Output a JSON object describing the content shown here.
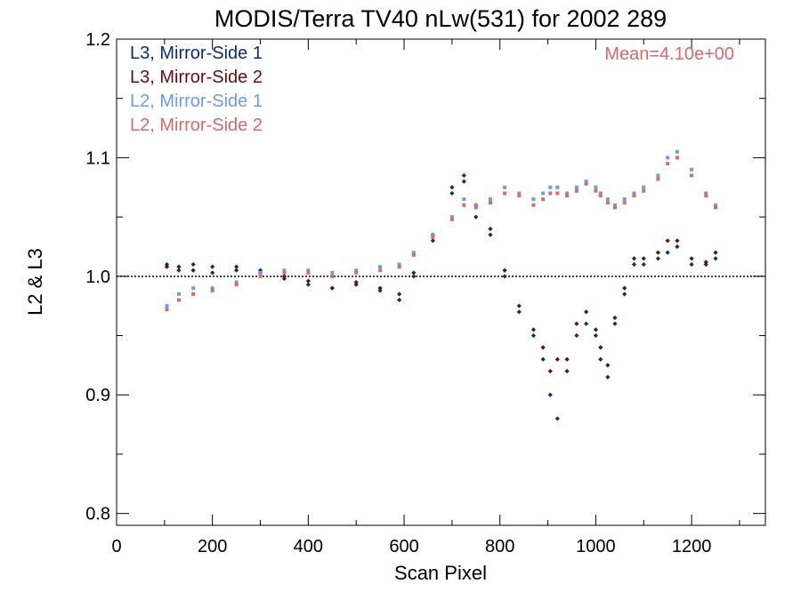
{
  "chart_data": {
    "type": "scatter",
    "title": "MODIS/Terra TV40 nLw(531) for 2002 289",
    "xlabel": "Scan Pixel",
    "ylabel": "L2 & L3",
    "xlim": [
      0,
      1354
    ],
    "ylim": [
      0.79,
      1.2
    ],
    "x_ticks": [
      0,
      200,
      400,
      600,
      800,
      1000,
      1200
    ],
    "y_ticks": [
      0.8,
      0.9,
      1.0,
      1.1,
      1.2
    ],
    "reference_line": 1.0,
    "annotation": "Mean=4.10e+00",
    "legend_position": "top-left",
    "series": [
      {
        "name": "L3, Mirror-Side 1",
        "color": "#0c2e6e",
        "marker": "diamond",
        "points": [
          [
            105,
            1.01
          ],
          [
            130,
            1.005
          ],
          [
            160,
            1.01
          ],
          [
            200,
            1.003
          ],
          [
            250,
            1.005
          ],
          [
            300,
            1.005
          ],
          [
            350,
            1.0
          ],
          [
            400,
            0.993
          ],
          [
            450,
            0.99
          ],
          [
            500,
            0.995
          ],
          [
            550,
            0.988
          ],
          [
            590,
            0.985
          ],
          [
            620,
            1.0
          ],
          [
            660,
            1.03
          ],
          [
            700,
            1.07
          ],
          [
            725,
            1.08
          ],
          [
            750,
            1.05
          ],
          [
            780,
            1.035
          ],
          [
            810,
            1.0
          ],
          [
            840,
            0.97
          ],
          [
            870,
            0.95
          ],
          [
            890,
            0.93
          ],
          [
            905,
            0.9
          ],
          [
            920,
            0.88
          ],
          [
            940,
            0.92
          ],
          [
            960,
            0.95
          ],
          [
            980,
            0.96
          ],
          [
            1000,
            0.95
          ],
          [
            1010,
            0.93
          ],
          [
            1025,
            0.915
          ],
          [
            1040,
            0.96
          ],
          [
            1060,
            0.985
          ],
          [
            1080,
            1.01
          ],
          [
            1100,
            1.01
          ],
          [
            1130,
            1.015
          ],
          [
            1150,
            1.02
          ],
          [
            1170,
            1.025
          ],
          [
            1200,
            1.01
          ],
          [
            1230,
            1.01
          ],
          [
            1250,
            1.015
          ]
        ]
      },
      {
        "name": "L3, Mirror-Side 2",
        "color": "#6b0a14",
        "marker": "diamond",
        "points": [
          [
            105,
            1.008
          ],
          [
            130,
            1.008
          ],
          [
            160,
            1.005
          ],
          [
            200,
            1.008
          ],
          [
            250,
            1.008
          ],
          [
            300,
            1.003
          ],
          [
            350,
            0.998
          ],
          [
            400,
            0.996
          ],
          [
            450,
            0.99
          ],
          [
            500,
            0.993
          ],
          [
            550,
            0.99
          ],
          [
            590,
            0.98
          ],
          [
            620,
            1.003
          ],
          [
            660,
            1.035
          ],
          [
            700,
            1.075
          ],
          [
            725,
            1.085
          ],
          [
            750,
            1.06
          ],
          [
            780,
            1.04
          ],
          [
            810,
            1.005
          ],
          [
            840,
            0.975
          ],
          [
            870,
            0.955
          ],
          [
            890,
            0.94
          ],
          [
            905,
            0.92
          ],
          [
            920,
            0.93
          ],
          [
            940,
            0.93
          ],
          [
            960,
            0.96
          ],
          [
            980,
            0.97
          ],
          [
            1000,
            0.955
          ],
          [
            1010,
            0.94
          ],
          [
            1025,
            0.925
          ],
          [
            1040,
            0.965
          ],
          [
            1060,
            0.99
          ],
          [
            1080,
            1.015
          ],
          [
            1100,
            1.015
          ],
          [
            1130,
            1.02
          ],
          [
            1150,
            1.03
          ],
          [
            1170,
            1.03
          ],
          [
            1200,
            1.015
          ],
          [
            1230,
            1.012
          ],
          [
            1250,
            1.02
          ]
        ]
      },
      {
        "name": "L2, Mirror-Side 1",
        "color": "#6b9be8",
        "marker": "square",
        "points": [
          [
            105,
            0.975
          ],
          [
            130,
            0.985
          ],
          [
            160,
            0.99
          ],
          [
            200,
            0.99
          ],
          [
            250,
            0.995
          ],
          [
            300,
            1.003
          ],
          [
            350,
            1.005
          ],
          [
            400,
            1.005
          ],
          [
            450,
            1.003
          ],
          [
            500,
            1.005
          ],
          [
            550,
            1.008
          ],
          [
            590,
            1.01
          ],
          [
            620,
            1.02
          ],
          [
            660,
            1.035
          ],
          [
            700,
            1.05
          ],
          [
            725,
            1.065
          ],
          [
            750,
            1.06
          ],
          [
            780,
            1.065
          ],
          [
            810,
            1.075
          ],
          [
            840,
            1.07
          ],
          [
            870,
            1.065
          ],
          [
            890,
            1.07
          ],
          [
            905,
            1.075
          ],
          [
            920,
            1.075
          ],
          [
            940,
            1.07
          ],
          [
            960,
            1.075
          ],
          [
            980,
            1.08
          ],
          [
            1000,
            1.075
          ],
          [
            1010,
            1.07
          ],
          [
            1025,
            1.065
          ],
          [
            1040,
            1.06
          ],
          [
            1060,
            1.065
          ],
          [
            1080,
            1.07
          ],
          [
            1100,
            1.075
          ],
          [
            1130,
            1.085
          ],
          [
            1150,
            1.1
          ],
          [
            1170,
            1.105
          ],
          [
            1200,
            1.09
          ],
          [
            1230,
            1.07
          ],
          [
            1250,
            1.06
          ]
        ]
      },
      {
        "name": "L2, Mirror-Side 2",
        "color": "#d9696b",
        "marker": "square",
        "points": [
          [
            105,
            0.972
          ],
          [
            130,
            0.98
          ],
          [
            160,
            0.985
          ],
          [
            200,
            0.988
          ],
          [
            250,
            0.993
          ],
          [
            300,
            1.0
          ],
          [
            350,
            1.003
          ],
          [
            400,
            1.003
          ],
          [
            450,
            1.0
          ],
          [
            500,
            1.003
          ],
          [
            550,
            1.005
          ],
          [
            590,
            1.008
          ],
          [
            620,
            1.018
          ],
          [
            660,
            1.033
          ],
          [
            700,
            1.048
          ],
          [
            725,
            1.06
          ],
          [
            750,
            1.058
          ],
          [
            780,
            1.062
          ],
          [
            810,
            1.07
          ],
          [
            840,
            1.068
          ],
          [
            870,
            1.06
          ],
          [
            890,
            1.065
          ],
          [
            905,
            1.07
          ],
          [
            920,
            1.07
          ],
          [
            940,
            1.068
          ],
          [
            960,
            1.072
          ],
          [
            980,
            1.078
          ],
          [
            1000,
            1.072
          ],
          [
            1010,
            1.068
          ],
          [
            1025,
            1.062
          ],
          [
            1040,
            1.058
          ],
          [
            1060,
            1.062
          ],
          [
            1080,
            1.068
          ],
          [
            1100,
            1.072
          ],
          [
            1130,
            1.082
          ],
          [
            1150,
            1.095
          ],
          [
            1170,
            1.1
          ],
          [
            1200,
            1.085
          ],
          [
            1230,
            1.068
          ],
          [
            1250,
            1.058
          ]
        ]
      }
    ]
  }
}
